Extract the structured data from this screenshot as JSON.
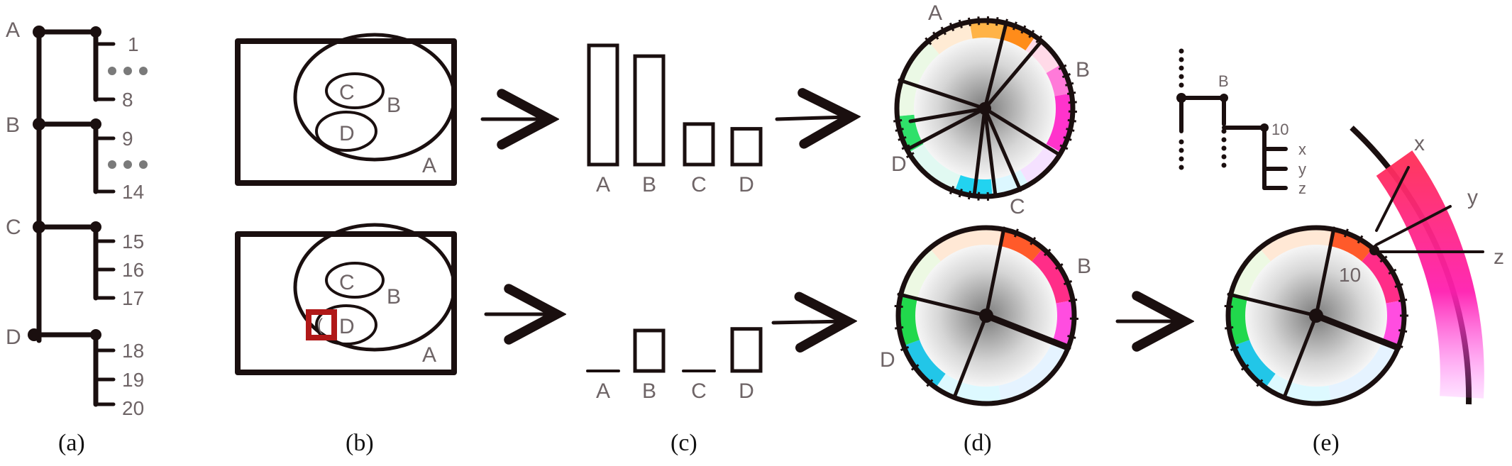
{
  "panel_a": {
    "caption": "(a)",
    "group_labels": [
      "A",
      "B",
      "C",
      "D"
    ],
    "leaf_labels": [
      "1",
      "8",
      "9",
      "14",
      "15",
      "16",
      "17",
      "18",
      "19",
      "20"
    ]
  },
  "panel_b": {
    "caption": "(b)",
    "region_labels": {
      "outer": "A",
      "middle": "B",
      "inner_top": "C",
      "inner_bottom": "D"
    },
    "cursor_glyph": "("
  },
  "panel_c": {
    "caption": "(c)",
    "top_bars": {
      "categories": [
        "A",
        "B",
        "C",
        "D"
      ],
      "values": [
        100,
        91,
        34,
        30
      ]
    },
    "bottom_bars": {
      "categories": [
        "A",
        "B",
        "C",
        "D"
      ],
      "values": [
        0,
        50,
        0,
        52
      ]
    }
  },
  "panel_d": {
    "caption": "(d)",
    "top_wheel_labels": [
      "A",
      "B",
      "C",
      "D"
    ],
    "bottom_wheel_labels": [
      "B",
      "D"
    ]
  },
  "panel_e": {
    "caption": "(e)",
    "tree_labels": {
      "parent": "B",
      "node": "10",
      "leaves": [
        "x",
        "y",
        "z"
      ]
    },
    "wheel_node_label": "10",
    "arc_labels": [
      "x",
      "y",
      "z"
    ]
  },
  "colors": {
    "ink": "#1a0f0f",
    "label": "#6e6466",
    "highlight": "#b01818"
  }
}
